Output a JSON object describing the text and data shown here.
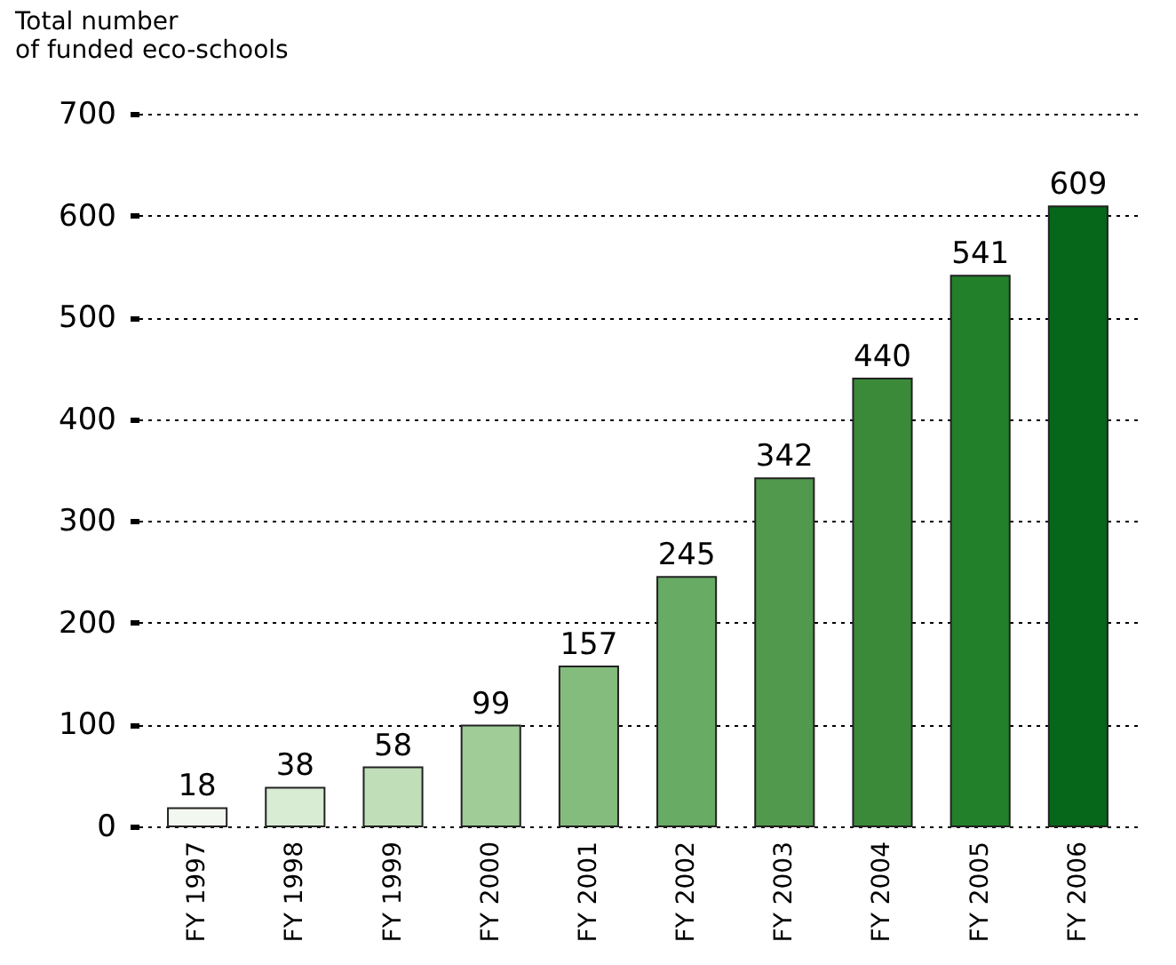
{
  "chart_data": {
    "type": "bar",
    "ylabel": "Total number\nof funded eco-schools",
    "categories": [
      "FY 1997",
      "FY 1998",
      "FY 1999",
      "FY 2000",
      "FY 2001",
      "FY 2002",
      "FY 2003",
      "FY 2004",
      "FY 2005",
      "FY 2006"
    ],
    "values": [
      18,
      38,
      58,
      99,
      157,
      245,
      342,
      440,
      541,
      609
    ],
    "colors": [
      "#f2f7ef",
      "#d8ebd3",
      "#c0dfb9",
      "#a0cc98",
      "#84bc7e",
      "#68ab64",
      "#50994d",
      "#3a8a3a",
      "#22802a",
      "#06661a"
    ],
    "ylim": [
      0,
      700
    ],
    "yticks": [
      0,
      100,
      200,
      300,
      400,
      500,
      600,
      700
    ],
    "grid": "y",
    "data_labels": true
  }
}
